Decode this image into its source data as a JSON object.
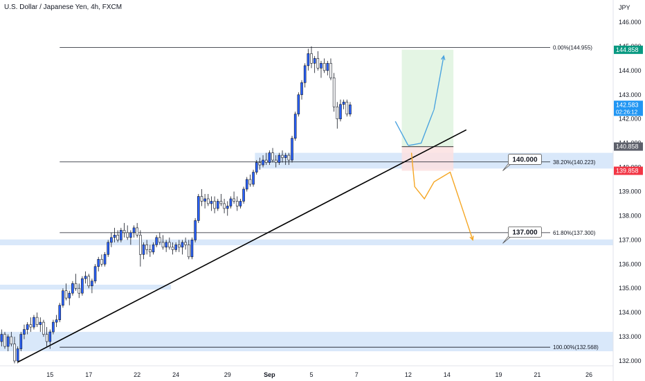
{
  "header": {
    "title": "U.S. Dollar / Japanese Yen, 4h, FXCM",
    "currency": "JPY"
  },
  "colors": {
    "bull": "#2962ff",
    "bear": "#ffffff",
    "wick": "#131722",
    "zone": "#cfe2f9",
    "trendline": "#000000",
    "target_box": "#dff3df",
    "stop_box": "#fbe0e0",
    "bull_path": "#4aa3df",
    "bear_path": "#f5a623",
    "tag_green": "#089981",
    "tag_blue": "#2196f3",
    "tag_red": "#f23645",
    "tag_dark": "#5d606b"
  },
  "chart_data": {
    "type": "candlestick",
    "title": "U.S. Dollar / Japanese Yen, 4h, FXCM",
    "ylim": [
      131.8,
      146.4
    ],
    "y_ticks": [
      {
        "value": 146,
        "label": "146.000"
      },
      {
        "value": 145,
        "label": "145.000"
      },
      {
        "value": 144,
        "label": "144.000"
      },
      {
        "value": 143,
        "label": "143.000"
      },
      {
        "value": 142,
        "label": "142.000"
      },
      {
        "value": 141,
        "label": "141.000"
      },
      {
        "value": 140,
        "label": "140.000"
      },
      {
        "value": 139,
        "label": "139.000"
      },
      {
        "value": 138,
        "label": "138.000"
      },
      {
        "value": 137,
        "label": "137.000"
      },
      {
        "value": 136,
        "label": "136.000"
      },
      {
        "value": 135,
        "label": "135.000"
      },
      {
        "value": 134,
        "label": "134.000"
      },
      {
        "value": 133,
        "label": "133.000"
      },
      {
        "value": 132,
        "label": "132.000"
      }
    ],
    "x_ticks": [
      {
        "bar": 15,
        "label": "15"
      },
      {
        "bar": 27,
        "label": "17"
      },
      {
        "bar": 42,
        "label": "22"
      },
      {
        "bar": 54,
        "label": "24"
      },
      {
        "bar": 70,
        "label": "29"
      },
      {
        "bar": 83,
        "label": "Sep"
      },
      {
        "bar": 96,
        "label": "5"
      },
      {
        "bar": 110,
        "label": "7"
      },
      {
        "bar": 126,
        "label": "12"
      },
      {
        "bar": 138,
        "label": "14"
      },
      {
        "bar": 154,
        "label": "19"
      },
      {
        "bar": 166,
        "label": "21"
      },
      {
        "bar": 182,
        "label": "26"
      }
    ],
    "bar_count": 190,
    "fib_levels": [
      {
        "label": "0.00%(144.955)",
        "value": 144.955
      },
      {
        "label": "38.20%(140.223)",
        "value": 140.223
      },
      {
        "label": "61.80%(137.300)",
        "value": 137.3
      },
      {
        "label": "100.00%(132.568)",
        "value": 132.568
      }
    ],
    "zones": [
      {
        "from_bar": 79,
        "to_bar": 190,
        "low": 139.95,
        "high": 140.6
      },
      {
        "from_bar": 0,
        "to_bar": 190,
        "low": 136.78,
        "high": 137.02
      },
      {
        "from_bar": 0,
        "to_bar": 53,
        "low": 134.95,
        "high": 135.15
      },
      {
        "from_bar": 0,
        "to_bar": 190,
        "low": 132.4,
        "high": 133.2
      }
    ],
    "trendline": {
      "from": {
        "bar": 5,
        "value": 131.95
      },
      "to": {
        "bar": 144,
        "value": 141.55
      }
    },
    "callouts": [
      {
        "label": "140.000",
        "value": 140.0,
        "at_bar": 157
      },
      {
        "label": "137.000",
        "value": 137.0,
        "at_bar": 157
      }
    ],
    "position": {
      "from_bar": 124,
      "to_bar": 140,
      "entry": 140.858,
      "target": 144.858,
      "stop": 139.858
    },
    "price_tags": [
      {
        "label": "144.858",
        "value": 144.858,
        "kind": "green"
      },
      {
        "label": "142.583",
        "value": 142.583,
        "kind": "blue",
        "sub": "02:26:12"
      },
      {
        "label": "140.858",
        "value": 140.858,
        "kind": "dark"
      },
      {
        "label": "139.858",
        "value": 139.858,
        "kind": "red"
      }
    ],
    "projections": {
      "bullish": [
        [
          122,
          141.9
        ],
        [
          126,
          140.9
        ],
        [
          130,
          141.0
        ],
        [
          134,
          142.4
        ],
        [
          137,
          144.6
        ]
      ],
      "bearish": [
        [
          127,
          140.6
        ],
        [
          128,
          139.2
        ],
        [
          131,
          138.7
        ],
        [
          134,
          139.4
        ],
        [
          139,
          139.8
        ],
        [
          142,
          138.6
        ],
        [
          146,
          137.0
        ]
      ]
    },
    "candles": [
      [
        132.8,
        133.3,
        132.6,
        133.1
      ],
      [
        133.1,
        133.2,
        132.5,
        132.6
      ],
      [
        132.6,
        133.1,
        132.4,
        133.0
      ],
      [
        133.0,
        133.2,
        132.6,
        132.7
      ],
      [
        132.7,
        133.0,
        131.9,
        132.0
      ],
      [
        132.0,
        132.6,
        131.9,
        132.5
      ],
      [
        132.5,
        133.2,
        132.4,
        133.1
      ],
      [
        133.1,
        133.5,
        132.9,
        133.3
      ],
      [
        133.3,
        133.6,
        133.1,
        133.5
      ],
      [
        133.5,
        133.8,
        133.2,
        133.4
      ],
      [
        133.4,
        133.9,
        133.3,
        133.8
      ],
      [
        133.8,
        134.0,
        133.4,
        133.5
      ],
      [
        133.5,
        133.8,
        133.2,
        133.6
      ],
      [
        133.6,
        133.7,
        133.0,
        133.1
      ],
      [
        133.1,
        133.4,
        132.6,
        132.8
      ],
      [
        132.8,
        133.3,
        132.5,
        133.2
      ],
      [
        133.2,
        133.7,
        133.1,
        133.6
      ],
      [
        133.6,
        133.9,
        133.4,
        133.7
      ],
      [
        133.7,
        134.4,
        133.6,
        134.3
      ],
      [
        134.3,
        135.0,
        134.2,
        134.9
      ],
      [
        134.9,
        135.2,
        134.5,
        134.6
      ],
      [
        134.6,
        134.9,
        134.3,
        134.8
      ],
      [
        134.8,
        135.3,
        134.7,
        135.2
      ],
      [
        135.2,
        135.6,
        134.9,
        135.0
      ],
      [
        135.0,
        135.2,
        134.6,
        134.8
      ],
      [
        134.8,
        135.5,
        134.7,
        135.4
      ],
      [
        135.4,
        135.7,
        135.2,
        135.5
      ],
      [
        135.5,
        135.6,
        135.0,
        135.1
      ],
      [
        135.1,
        135.4,
        134.8,
        135.3
      ],
      [
        135.3,
        136.0,
        135.2,
        135.9
      ],
      [
        135.9,
        136.3,
        135.7,
        136.2
      ],
      [
        136.2,
        136.4,
        135.9,
        136.0
      ],
      [
        136.0,
        136.5,
        135.9,
        136.4
      ],
      [
        136.4,
        137.0,
        136.3,
        136.9
      ],
      [
        136.9,
        137.3,
        136.7,
        137.1
      ],
      [
        137.1,
        137.5,
        136.9,
        137.2
      ],
      [
        137.2,
        137.4,
        136.9,
        137.0
      ],
      [
        137.0,
        137.5,
        136.9,
        137.4
      ],
      [
        137.4,
        137.7,
        137.1,
        137.3
      ],
      [
        137.3,
        137.6,
        137.0,
        137.1
      ],
      [
        137.1,
        137.4,
        136.8,
        137.3
      ],
      [
        137.3,
        137.6,
        137.1,
        137.5
      ],
      [
        137.5,
        137.7,
        137.1,
        137.2
      ],
      [
        137.2,
        137.4,
        135.9,
        136.4
      ],
      [
        136.4,
        136.9,
        136.2,
        136.8
      ],
      [
        136.8,
        137.0,
        136.4,
        136.6
      ],
      [
        136.6,
        136.8,
        136.3,
        136.5
      ],
      [
        136.5,
        136.9,
        136.4,
        136.8
      ],
      [
        136.8,
        137.2,
        136.7,
        137.1
      ],
      [
        137.1,
        137.3,
        136.8,
        136.9
      ],
      [
        136.9,
        137.2,
        136.6,
        136.7
      ],
      [
        136.7,
        137.0,
        136.5,
        136.9
      ],
      [
        136.9,
        137.1,
        136.6,
        136.7
      ],
      [
        136.7,
        136.9,
        136.4,
        136.6
      ],
      [
        136.6,
        136.9,
        136.5,
        136.8
      ],
      [
        136.8,
        137.0,
        136.5,
        136.7
      ],
      [
        136.7,
        137.0,
        136.4,
        136.9
      ],
      [
        136.9,
        137.1,
        136.6,
        136.8
      ],
      [
        136.8,
        137.0,
        136.2,
        136.3
      ],
      [
        136.3,
        137.1,
        136.2,
        137.0
      ],
      [
        137.0,
        137.9,
        136.9,
        137.8
      ],
      [
        137.8,
        138.9,
        137.7,
        138.8
      ],
      [
        138.8,
        139.1,
        138.4,
        138.6
      ],
      [
        138.6,
        138.9,
        138.3,
        138.7
      ],
      [
        138.7,
        138.9,
        138.4,
        138.5
      ],
      [
        138.5,
        138.8,
        138.2,
        138.6
      ],
      [
        138.6,
        138.8,
        138.1,
        138.3
      ],
      [
        138.3,
        138.7,
        138.2,
        138.6
      ],
      [
        138.6,
        138.9,
        138.4,
        138.5
      ],
      [
        138.5,
        138.7,
        138.1,
        138.3
      ],
      [
        138.3,
        138.6,
        138.0,
        138.4
      ],
      [
        138.4,
        138.8,
        138.3,
        138.7
      ],
      [
        138.7,
        139.0,
        138.5,
        138.6
      ],
      [
        138.6,
        138.8,
        138.2,
        138.4
      ],
      [
        138.4,
        138.7,
        138.3,
        138.6
      ],
      [
        138.6,
        139.2,
        138.5,
        139.1
      ],
      [
        139.1,
        139.6,
        139.0,
        139.5
      ],
      [
        139.5,
        139.7,
        139.2,
        139.3
      ],
      [
        139.3,
        139.9,
        139.2,
        139.8
      ],
      [
        139.8,
        140.3,
        139.7,
        140.2
      ],
      [
        140.2,
        140.4,
        139.9,
        140.1
      ],
      [
        140.1,
        140.5,
        140.0,
        140.3
      ],
      [
        140.3,
        140.6,
        140.1,
        140.2
      ],
      [
        140.2,
        140.7,
        140.1,
        140.6
      ],
      [
        140.6,
        140.8,
        140.2,
        140.3
      ],
      [
        140.3,
        140.5,
        140.0,
        140.2
      ],
      [
        140.2,
        140.6,
        140.1,
        140.5
      ],
      [
        140.5,
        140.7,
        140.2,
        140.4
      ],
      [
        140.4,
        140.6,
        140.1,
        140.5
      ],
      [
        140.5,
        140.6,
        140.1,
        140.3
      ],
      [
        140.3,
        141.3,
        140.2,
        141.2
      ],
      [
        141.2,
        142.3,
        141.1,
        142.2
      ],
      [
        142.2,
        143.1,
        142.1,
        143.0
      ],
      [
        143.0,
        143.6,
        142.8,
        143.5
      ],
      [
        143.5,
        144.3,
        143.3,
        144.2
      ],
      [
        144.2,
        144.9,
        144.0,
        144.7
      ],
      [
        144.7,
        145.0,
        144.1,
        144.3
      ],
      [
        144.3,
        144.6,
        143.9,
        144.5
      ],
      [
        144.5,
        144.8,
        144.0,
        144.1
      ],
      [
        144.1,
        144.4,
        143.7,
        144.3
      ],
      [
        144.3,
        144.5,
        143.9,
        144.0
      ],
      [
        144.0,
        144.4,
        143.8,
        144.3
      ],
      [
        144.3,
        144.5,
        143.6,
        143.7
      ],
      [
        143.7,
        143.9,
        142.3,
        142.5
      ],
      [
        142.5,
        142.7,
        141.6,
        142.0
      ],
      [
        142.0,
        142.8,
        141.9,
        142.6
      ],
      [
        142.6,
        142.8,
        142.4,
        142.7
      ],
      [
        142.7,
        142.8,
        142.1,
        142.2
      ],
      [
        142.2,
        142.7,
        142.1,
        142.583
      ]
    ]
  }
}
